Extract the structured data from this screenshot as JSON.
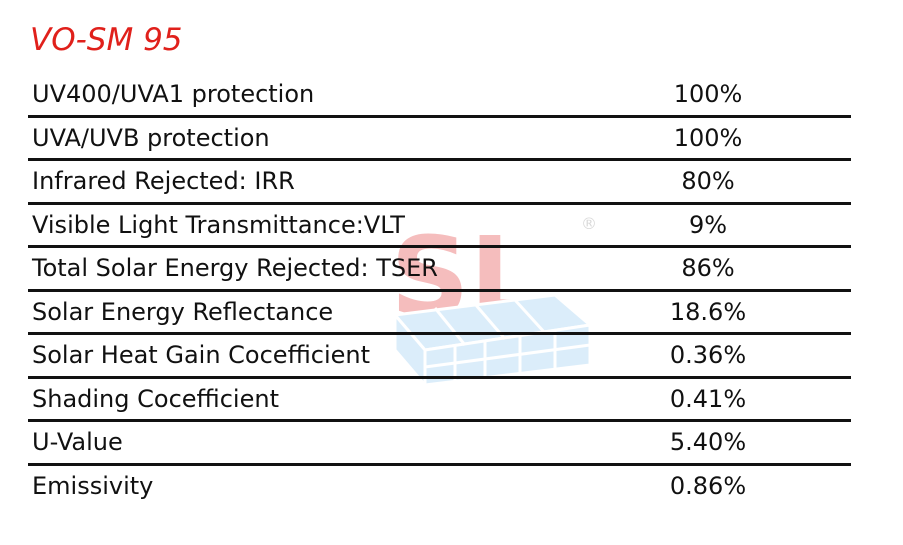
{
  "title": "VO-SM 95",
  "watermark": {
    "text": "SL",
    "mark": "®"
  },
  "table": {
    "rows": [
      [
        "UV400/UVA1 protection",
        "100%"
      ],
      [
        "UVA/UVB protection",
        "100%"
      ],
      [
        "Infrared Rejected: IRR",
        "80%"
      ],
      [
        "Visible Light Transmittance:VLT",
        "9%"
      ],
      [
        "Total Solar Energy Rejected: TSER",
        "86%"
      ],
      [
        "Solar Energy Reflectance",
        "18.6%"
      ],
      [
        "Solar Heat Gain Cocefficient",
        "0.36%"
      ],
      [
        "Shading Cocefficient",
        "0.41%"
      ],
      [
        "U-Value",
        "5.40%"
      ],
      [
        "Emissivity",
        "0.86%"
      ]
    ]
  }
}
